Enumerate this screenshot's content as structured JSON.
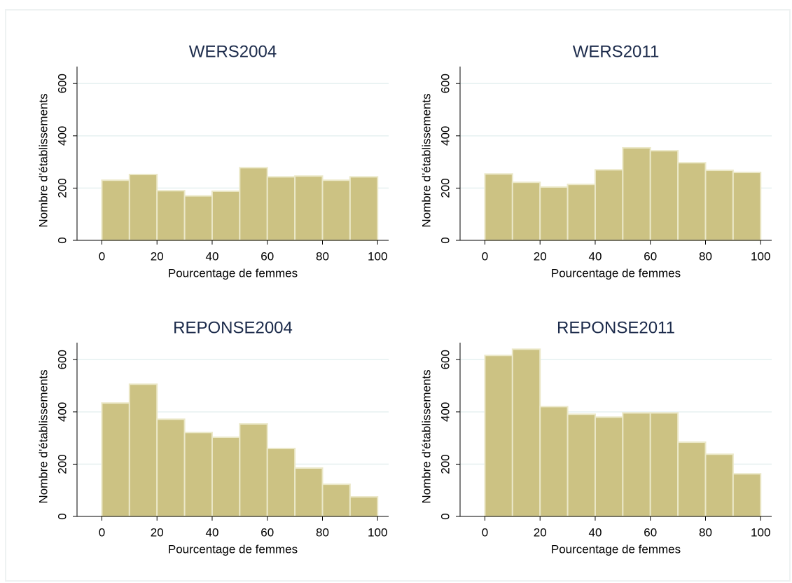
{
  "chart_data": [
    {
      "type": "histogram",
      "title": "WERS2004",
      "xlabel": "Pourcentage de femmes",
      "ylabel": "Nombre d'établissements",
      "bins": [
        0,
        10,
        20,
        30,
        40,
        50,
        60,
        70,
        80,
        90,
        100
      ],
      "counts": [
        230,
        252,
        190,
        170,
        188,
        278,
        243,
        246,
        230,
        243
      ],
      "color": "#ccc283",
      "xlim": [
        -9,
        104
      ],
      "ylim": [
        0,
        665
      ],
      "xticks": [
        0,
        20,
        40,
        60,
        80,
        100
      ],
      "yticks": [
        0,
        200,
        400,
        600
      ],
      "grid": true
    },
    {
      "type": "histogram",
      "title": "WERS2011",
      "xlabel": "Pourcentage de femmes",
      "ylabel": "Nombre d'établissements",
      "bins": [
        0,
        10,
        20,
        30,
        40,
        50,
        60,
        70,
        80,
        90,
        100
      ],
      "counts": [
        254,
        222,
        204,
        214,
        270,
        354,
        343,
        297,
        268,
        260
      ],
      "color": "#ccc283",
      "xlim": [
        -9,
        104
      ],
      "ylim": [
        0,
        665
      ],
      "xticks": [
        0,
        20,
        40,
        60,
        80,
        100
      ],
      "yticks": [
        0,
        200,
        400,
        600
      ],
      "grid": true
    },
    {
      "type": "histogram",
      "title": "REPONSE2004",
      "xlabel": "Pourcentage de femmes",
      "ylabel": "Nombre d'établissements",
      "bins": [
        0,
        10,
        20,
        30,
        40,
        50,
        60,
        70,
        80,
        90,
        100
      ],
      "counts": [
        434,
        506,
        372,
        321,
        303,
        354,
        260,
        185,
        123,
        75
      ],
      "color": "#ccc283",
      "xlim": [
        -9,
        104
      ],
      "ylim": [
        0,
        665
      ],
      "xticks": [
        0,
        20,
        40,
        60,
        80,
        100
      ],
      "yticks": [
        0,
        200,
        400,
        600
      ],
      "grid": true
    },
    {
      "type": "histogram",
      "title": "REPONSE2011",
      "xlabel": "Pourcentage de femmes",
      "ylabel": "Nombre d'établissements",
      "bins": [
        0,
        10,
        20,
        30,
        40,
        50,
        60,
        70,
        80,
        90,
        100
      ],
      "counts": [
        616,
        640,
        420,
        391,
        380,
        396,
        396,
        284,
        238,
        163
      ],
      "color": "#ccc283",
      "xlim": [
        -9,
        104
      ],
      "ylim": [
        0,
        665
      ],
      "xticks": [
        0,
        20,
        40,
        60,
        80,
        100
      ],
      "yticks": [
        0,
        200,
        400,
        600
      ],
      "grid": true
    }
  ]
}
